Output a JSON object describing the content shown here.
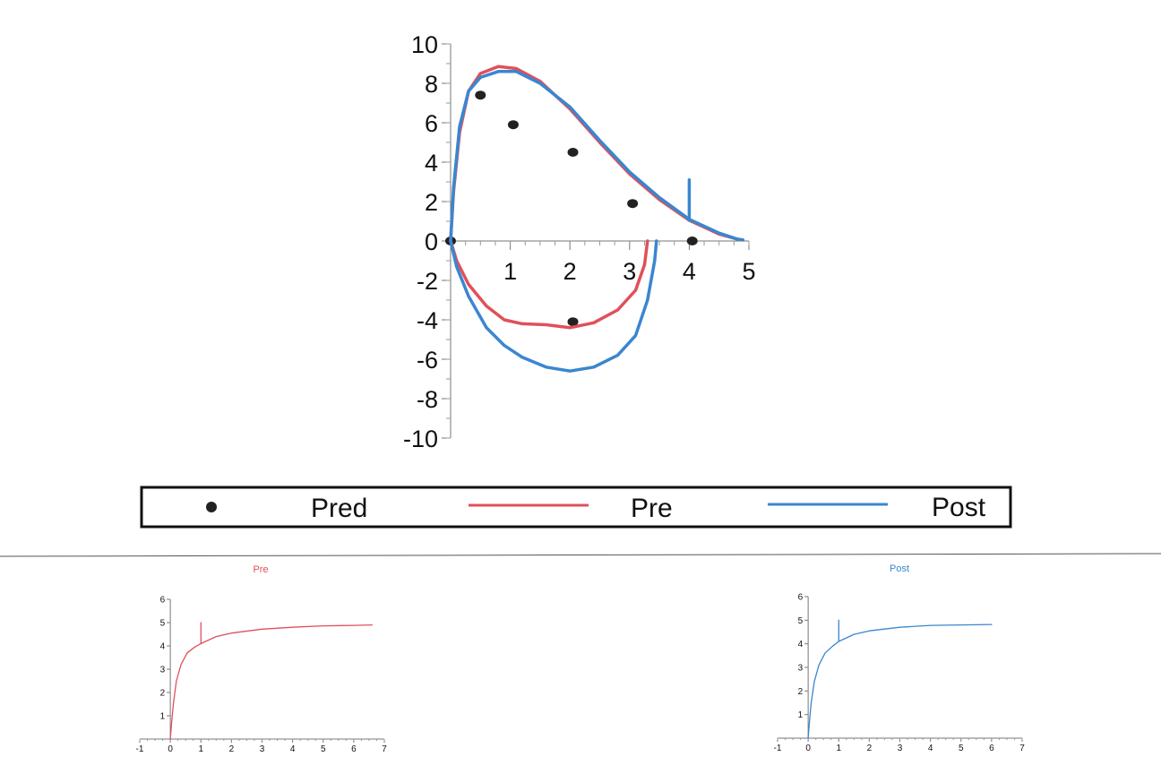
{
  "chart_data": [
    {
      "type": "line",
      "title": "",
      "xlabel": "",
      "ylabel": "",
      "xlim": [
        0,
        5
      ],
      "ylim": [
        -10,
        10
      ],
      "x_ticks": [
        "1",
        "2",
        "3",
        "4",
        "5"
      ],
      "y_ticks": [
        "10",
        "8",
        "6",
        "4",
        "2",
        "0",
        "-2",
        "-4",
        "-6",
        "-8",
        "-10"
      ],
      "grid": false,
      "legend": {
        "placement": "bottom",
        "entries": [
          {
            "label": "Pred",
            "marker": "dot",
            "color": "#222222"
          },
          {
            "label": "Pre",
            "marker": "line",
            "color": "#e0505a"
          },
          {
            "label": "Post",
            "marker": "line",
            "color": "#3a86d0"
          }
        ]
      },
      "series": [
        {
          "name": "Pred",
          "kind": "scatter",
          "color": "#222222",
          "points": [
            [
              0,
              0
            ],
            [
              0.5,
              7.4
            ],
            [
              1.05,
              5.9
            ],
            [
              2.05,
              4.5
            ],
            [
              3.05,
              1.9
            ],
            [
              4.05,
              0
            ],
            [
              2.05,
              -4.1
            ]
          ]
        },
        {
          "name": "Pre",
          "kind": "line",
          "color": "#e0505a",
          "points": [
            [
              0,
              0
            ],
            [
              0.05,
              2.5
            ],
            [
              0.15,
              5.5
            ],
            [
              0.3,
              7.6
            ],
            [
              0.5,
              8.5
            ],
            [
              0.8,
              8.85
            ],
            [
              1.1,
              8.75
            ],
            [
              1.5,
              8.1
            ],
            [
              2.0,
              6.7
            ],
            [
              2.5,
              5.0
            ],
            [
              3.0,
              3.4
            ],
            [
              3.5,
              2.1
            ],
            [
              4.0,
              1.05
            ],
            [
              4.5,
              0.35
            ],
            [
              4.8,
              0.1
            ],
            [
              4.9,
              0.05
            ]
          ]
        },
        {
          "name": "Pre",
          "kind": "line",
          "color": "#e0505a",
          "points": [
            [
              0,
              0
            ],
            [
              0.1,
              -1.0
            ],
            [
              0.3,
              -2.2
            ],
            [
              0.6,
              -3.3
            ],
            [
              0.9,
              -4.0
            ],
            [
              1.2,
              -4.2
            ],
            [
              1.6,
              -4.25
            ],
            [
              2.0,
              -4.4
            ],
            [
              2.4,
              -4.15
            ],
            [
              2.8,
              -3.5
            ],
            [
              3.1,
              -2.5
            ],
            [
              3.25,
              -1.2
            ],
            [
              3.3,
              0
            ]
          ]
        },
        {
          "name": "Post",
          "kind": "line",
          "color": "#3a86d0",
          "points": [
            [
              0,
              0
            ],
            [
              0.05,
              2.7
            ],
            [
              0.15,
              5.8
            ],
            [
              0.3,
              7.6
            ],
            [
              0.5,
              8.3
            ],
            [
              0.8,
              8.6
            ],
            [
              1.1,
              8.6
            ],
            [
              1.5,
              8.0
            ],
            [
              2.0,
              6.8
            ],
            [
              2.5,
              5.1
            ],
            [
              3.0,
              3.5
            ],
            [
              3.5,
              2.2
            ],
            [
              4.0,
              1.1
            ],
            [
              4.5,
              0.4
            ],
            [
              4.8,
              0.1
            ],
            [
              4.9,
              0.05
            ]
          ]
        },
        {
          "name": "Post",
          "kind": "line",
          "color": "#3a86d0",
          "points": [
            [
              0,
              0
            ],
            [
              0.1,
              -1.3
            ],
            [
              0.3,
              -2.8
            ],
            [
              0.6,
              -4.4
            ],
            [
              0.9,
              -5.3
            ],
            [
              1.2,
              -5.9
            ],
            [
              1.6,
              -6.4
            ],
            [
              2.0,
              -6.6
            ],
            [
              2.4,
              -6.4
            ],
            [
              2.8,
              -5.8
            ],
            [
              3.1,
              -4.8
            ],
            [
              3.3,
              -3.0
            ],
            [
              3.42,
              -1.0
            ],
            [
              3.45,
              0
            ]
          ]
        },
        {
          "name": "Post",
          "kind": "line",
          "color": "#3a86d0",
          "points": [
            [
              4.0,
              1.05
            ],
            [
              4.0,
              3.1
            ]
          ]
        }
      ]
    },
    {
      "type": "line",
      "title": "Pre",
      "title_color": "#e0505a",
      "xlim": [
        -1,
        7
      ],
      "ylim": [
        0,
        6
      ],
      "x_ticks": [
        "-1",
        "0",
        "1",
        "2",
        "3",
        "4",
        "5",
        "6",
        "7"
      ],
      "y_ticks": [
        "1",
        "2",
        "3",
        "4",
        "5",
        "6"
      ],
      "grid": false,
      "series": [
        {
          "name": "",
          "color": "#e0505a",
          "points": [
            [
              0,
              0
            ],
            [
              0.05,
              0.8
            ],
            [
              0.1,
              1.5
            ],
            [
              0.2,
              2.5
            ],
            [
              0.35,
              3.2
            ],
            [
              0.55,
              3.7
            ],
            [
              0.8,
              3.95
            ],
            [
              1.0,
              4.1
            ],
            [
              1.5,
              4.4
            ],
            [
              2.0,
              4.55
            ],
            [
              3.0,
              4.72
            ],
            [
              4.0,
              4.8
            ],
            [
              5.0,
              4.86
            ],
            [
              6.0,
              4.88
            ],
            [
              6.6,
              4.9
            ]
          ]
        },
        {
          "name": "",
          "color": "#e0505a",
          "points": [
            [
              1.0,
              4.1
            ],
            [
              1.0,
              5.0
            ]
          ]
        }
      ]
    },
    {
      "type": "line",
      "title": "Post",
      "title_color": "#3a86d0",
      "xlim": [
        -1,
        7
      ],
      "ylim": [
        0,
        6
      ],
      "x_ticks": [
        "-1",
        "0",
        "1",
        "2",
        "3",
        "4",
        "5",
        "6",
        "7"
      ],
      "y_ticks": [
        "1",
        "2",
        "3",
        "4",
        "5",
        "6"
      ],
      "grid": false,
      "series": [
        {
          "name": "",
          "color": "#3a86d0",
          "points": [
            [
              0,
              0
            ],
            [
              0.05,
              0.8
            ],
            [
              0.1,
              1.5
            ],
            [
              0.2,
              2.4
            ],
            [
              0.35,
              3.1
            ],
            [
              0.55,
              3.6
            ],
            [
              0.8,
              3.9
            ],
            [
              1.0,
              4.1
            ],
            [
              1.5,
              4.4
            ],
            [
              2.0,
              4.55
            ],
            [
              3.0,
              4.7
            ],
            [
              4.0,
              4.78
            ],
            [
              5.0,
              4.8
            ],
            [
              6.0,
              4.82
            ]
          ]
        },
        {
          "name": "",
          "color": "#3a86d0",
          "points": [
            [
              1.0,
              4.1
            ],
            [
              1.0,
              5.0
            ]
          ]
        }
      ]
    }
  ]
}
